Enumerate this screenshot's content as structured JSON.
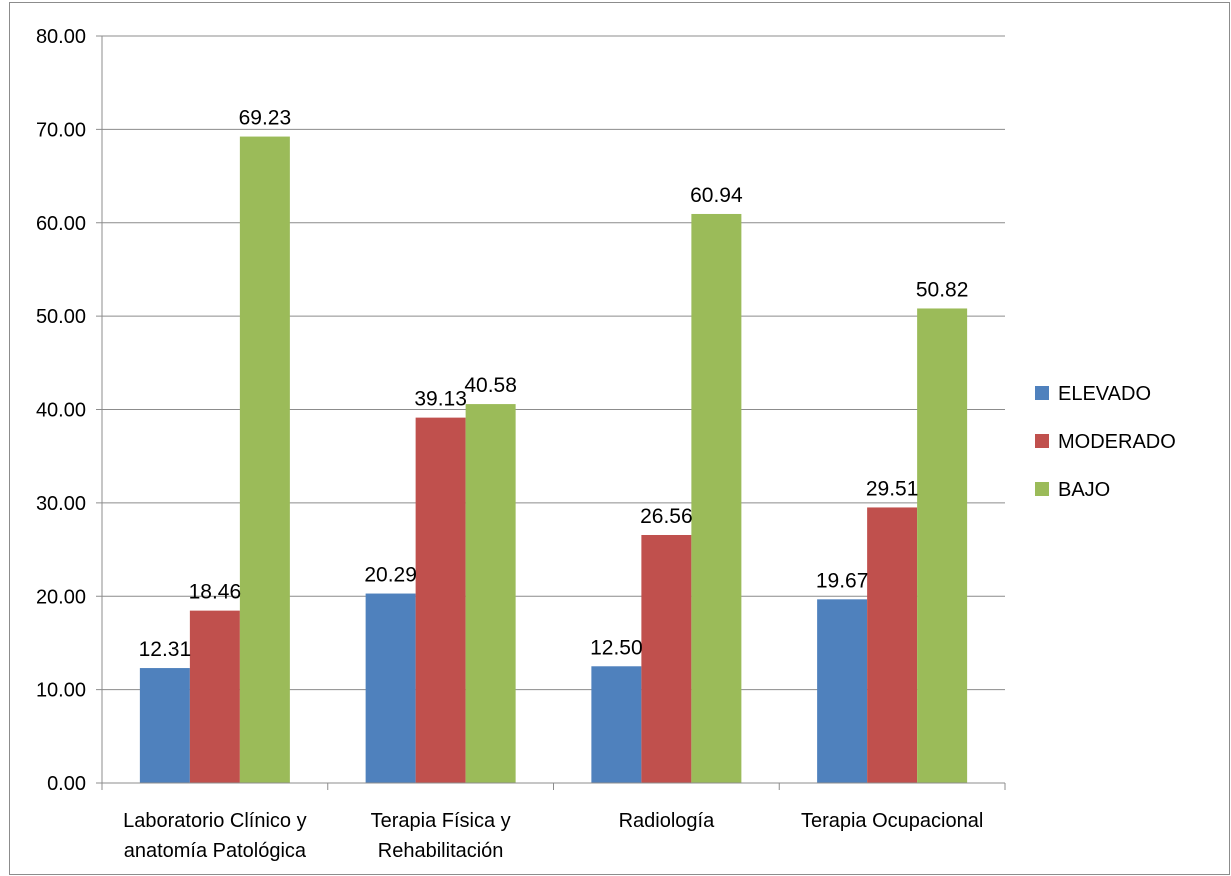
{
  "chart_data": {
    "type": "bar",
    "title": "",
    "xlabel": "",
    "ylabel": "",
    "ylim": [
      0,
      80
    ],
    "yticks": [
      "0.00",
      "10.00",
      "20.00",
      "30.00",
      "40.00",
      "50.00",
      "60.00",
      "70.00",
      "80.00"
    ],
    "grid": true,
    "legend_position": "right",
    "categories": [
      [
        "Laboratorio Clínico y",
        "anatomía Patológica"
      ],
      [
        "Terapia Física y",
        "Rehabilitación"
      ],
      [
        "Radiología"
      ],
      [
        "Terapia Ocupacional"
      ]
    ],
    "series": [
      {
        "name": "ELEVADO",
        "color": "#4f81bd",
        "values": [
          12.31,
          20.29,
          12.5,
          19.67
        ],
        "labels": [
          "12.31",
          "20.29",
          "12.50",
          "19.67"
        ]
      },
      {
        "name": "MODERADO",
        "color": "#c0504d",
        "values": [
          18.46,
          39.13,
          26.56,
          29.51
        ],
        "labels": [
          "18.46",
          "39.13",
          "26.56",
          "29.51"
        ]
      },
      {
        "name": "BAJO",
        "color": "#9bbb59",
        "values": [
          69.23,
          40.58,
          60.94,
          50.82
        ],
        "labels": [
          "69.23",
          "40.58",
          "60.94",
          "50.82"
        ]
      }
    ]
  }
}
